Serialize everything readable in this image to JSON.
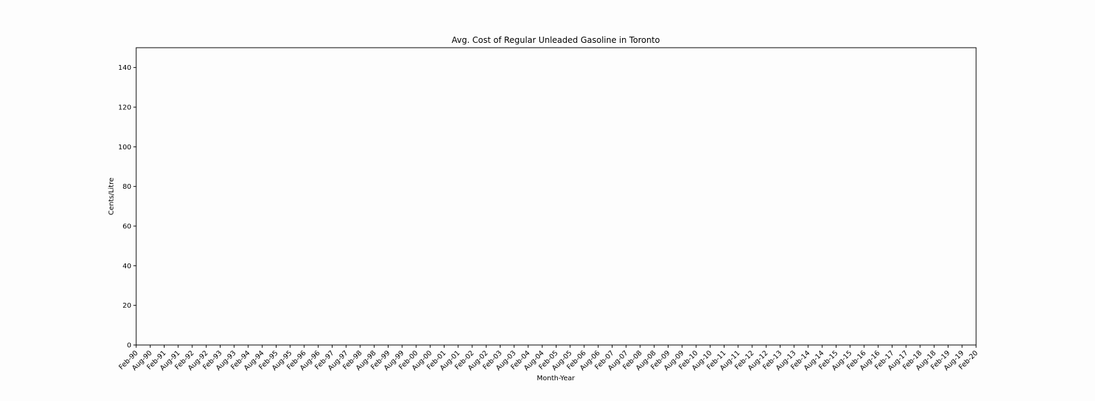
{
  "chart_data": {
    "type": "line",
    "title": "Avg. Cost of Regular Unleaded Gasoline in Toronto",
    "xlabel": "Month-Year",
    "ylabel": "Cents/Litre",
    "ylim": [
      0,
      150
    ],
    "yticks": [
      0,
      20,
      40,
      60,
      80,
      100,
      120,
      140
    ],
    "xticks": [
      "Feb-90",
      "Aug-90",
      "Feb-91",
      "Aug-91",
      "Feb-92",
      "Aug-92",
      "Feb-93",
      "Aug-93",
      "Feb-94",
      "Aug-94",
      "Feb-95",
      "Aug-95",
      "Feb-96",
      "Aug-96",
      "Feb-97",
      "Aug-97",
      "Feb-98",
      "Aug-98",
      "Feb-99",
      "Aug-99",
      "Feb-00",
      "Aug-00",
      "Feb-01",
      "Aug-01",
      "Feb-02",
      "Aug-02",
      "Feb-03",
      "Aug-03",
      "Feb-04",
      "Aug-04",
      "Feb-05",
      "Aug-05",
      "Feb-06",
      "Aug-06",
      "Feb-07",
      "Aug-07",
      "Feb-08",
      "Aug-08",
      "Feb-09",
      "Aug-09",
      "Feb-10",
      "Aug-10",
      "Feb-11",
      "Aug-11",
      "Feb-12",
      "Aug-12",
      "Feb-13",
      "Aug-13",
      "Feb-14",
      "Aug-14",
      "Feb-15",
      "Aug-15",
      "Feb-16",
      "Aug-16",
      "Feb-17",
      "Aug-17",
      "Feb-18",
      "Aug-18",
      "Feb-19",
      "Aug-19",
      "Feb-20"
    ],
    "series": [],
    "grid": false,
    "legend": false
  }
}
